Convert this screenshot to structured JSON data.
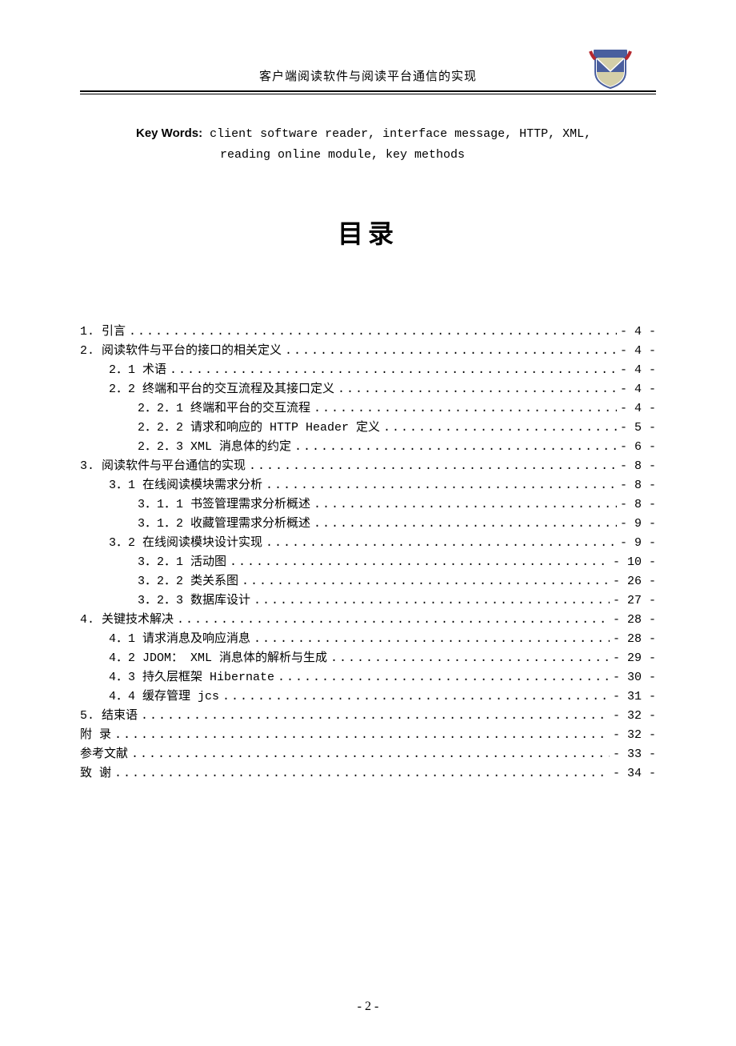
{
  "header": {
    "title": "客户端阅读软件与阅读平台通信的实现",
    "logo": {
      "bg_color": "#4a5f9e",
      "banner_color": "#b5282f",
      "shield_color": "#ffffff",
      "cross_color": "#d4cfa8"
    }
  },
  "keywords": {
    "label": "Key Words:",
    "line1": " client software reader, interface message, HTTP, XML,",
    "line2": "reading online module, key methods"
  },
  "toc_title": "目录",
  "toc": [
    {
      "indent": 0,
      "label": "1. 引言",
      "page": "- 4 -"
    },
    {
      "indent": 0,
      "label": "2. 阅读软件与平台的接口的相关定义",
      "page": "- 4 -"
    },
    {
      "indent": 1,
      "label": "2．1 术语",
      "page": "- 4 -"
    },
    {
      "indent": 1,
      "label": "2．2 终端和平台的交互流程及其接口定义",
      "page": "- 4 -"
    },
    {
      "indent": 2,
      "label": "2．2．1 终端和平台的交互流程",
      "page": "- 4 -"
    },
    {
      "indent": 2,
      "label": "2．2．2 请求和响应的 HTTP Header 定义",
      "page": "- 5 -"
    },
    {
      "indent": 2,
      "label": "2．2．3  XML 消息体的约定",
      "page": "- 6 -"
    },
    {
      "indent": 0,
      "label": "3. 阅读软件与平台通信的实现",
      "page": "- 8 -"
    },
    {
      "indent": 1,
      "label": "3．1 在线阅读模块需求分析",
      "page": "- 8 -"
    },
    {
      "indent": 2,
      "label": "3．1．1 书签管理需求分析概述",
      "page": "- 8 -"
    },
    {
      "indent": 2,
      "label": "3．1．2 收藏管理需求分析概述",
      "page": "- 9 -"
    },
    {
      "indent": 1,
      "label": "3．2 在线阅读模块设计实现",
      "page": "- 9 -"
    },
    {
      "indent": 2,
      "label": "3．2．1 活动图",
      "page": "- 10 -"
    },
    {
      "indent": 2,
      "label": "3．2．2 类关系图",
      "page": "- 26 -"
    },
    {
      "indent": 2,
      "label": "3．2．3 数据库设计",
      "page": "- 27 -"
    },
    {
      "indent": 0,
      "label": "4. 关键技术解决",
      "page": "- 28 -"
    },
    {
      "indent": 1,
      "label": "4．1 请求消息及响应消息",
      "page": "- 28 -"
    },
    {
      "indent": 1,
      "label": "4．2 JDOM： XML 消息体的解析与生成",
      "page": "- 29 -"
    },
    {
      "indent": 1,
      "label": "4．3 持久层框架 Hibernate",
      "page": "- 30 -"
    },
    {
      "indent": 1,
      "label": "4．4 缓存管理 jcs",
      "page": "- 31 -"
    },
    {
      "indent": 0,
      "label": "5. 结束语",
      "page": "- 32 -"
    },
    {
      "indent": 0,
      "label": "附  录",
      "page": "- 32 -"
    },
    {
      "indent": 0,
      "label": "参考文献",
      "page": "- 33 -"
    },
    {
      "indent": 0,
      "label": "致  谢",
      "page": "- 34 -"
    }
  ],
  "page_number": "- 2 -"
}
